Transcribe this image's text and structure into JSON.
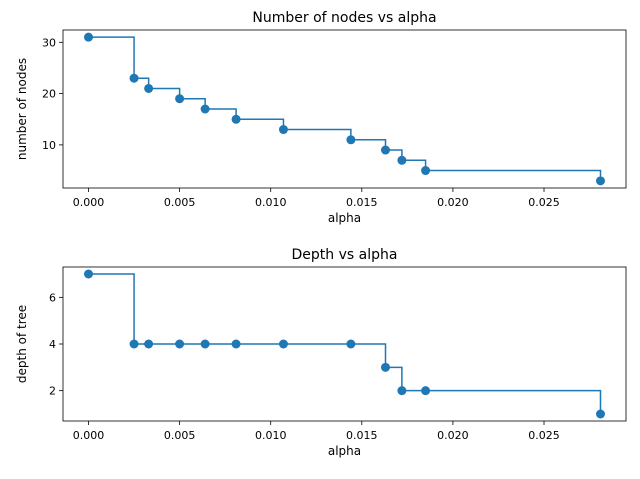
{
  "chart_data": [
    {
      "type": "line",
      "drawstyle": "steps-post",
      "marker": "circle",
      "title": "Number of nodes vs alpha",
      "xlabel": "alpha",
      "ylabel": "number of nodes",
      "xlim": [
        -0.0014,
        0.0295
      ],
      "ylim": [
        1.6,
        32.4
      ],
      "xticks": [
        0.0,
        0.005,
        0.01,
        0.015,
        0.02,
        0.025
      ],
      "xtick_labels": [
        "0.000",
        "0.005",
        "0.010",
        "0.015",
        "0.020",
        "0.025"
      ],
      "yticks": [
        10,
        20,
        30
      ],
      "ytick_labels": [
        "10",
        "20",
        "30"
      ],
      "color": "#1f77b4",
      "x": [
        0.0,
        0.0025,
        0.0033,
        0.005,
        0.0064,
        0.0081,
        0.0107,
        0.0144,
        0.0163,
        0.0172,
        0.0185,
        0.0281
      ],
      "y": [
        31,
        23,
        21,
        19,
        17,
        15,
        13,
        11,
        9,
        7,
        5,
        3
      ]
    },
    {
      "type": "line",
      "drawstyle": "steps-post",
      "marker": "circle",
      "title": "Depth vs alpha",
      "xlabel": "alpha",
      "ylabel": "depth of tree",
      "xlim": [
        -0.0014,
        0.0295
      ],
      "ylim": [
        0.7,
        7.3
      ],
      "xticks": [
        0.0,
        0.005,
        0.01,
        0.015,
        0.02,
        0.025
      ],
      "xtick_labels": [
        "0.000",
        "0.005",
        "0.010",
        "0.015",
        "0.020",
        "0.025"
      ],
      "yticks": [
        2,
        4,
        6
      ],
      "ytick_labels": [
        "2",
        "4",
        "6"
      ],
      "color": "#1f77b4",
      "x": [
        0.0,
        0.0025,
        0.0033,
        0.005,
        0.0064,
        0.0081,
        0.0107,
        0.0144,
        0.0163,
        0.0172,
        0.0185,
        0.0281
      ],
      "y": [
        7,
        4,
        4,
        4,
        4,
        4,
        4,
        4,
        3,
        2,
        2,
        1
      ]
    }
  ]
}
